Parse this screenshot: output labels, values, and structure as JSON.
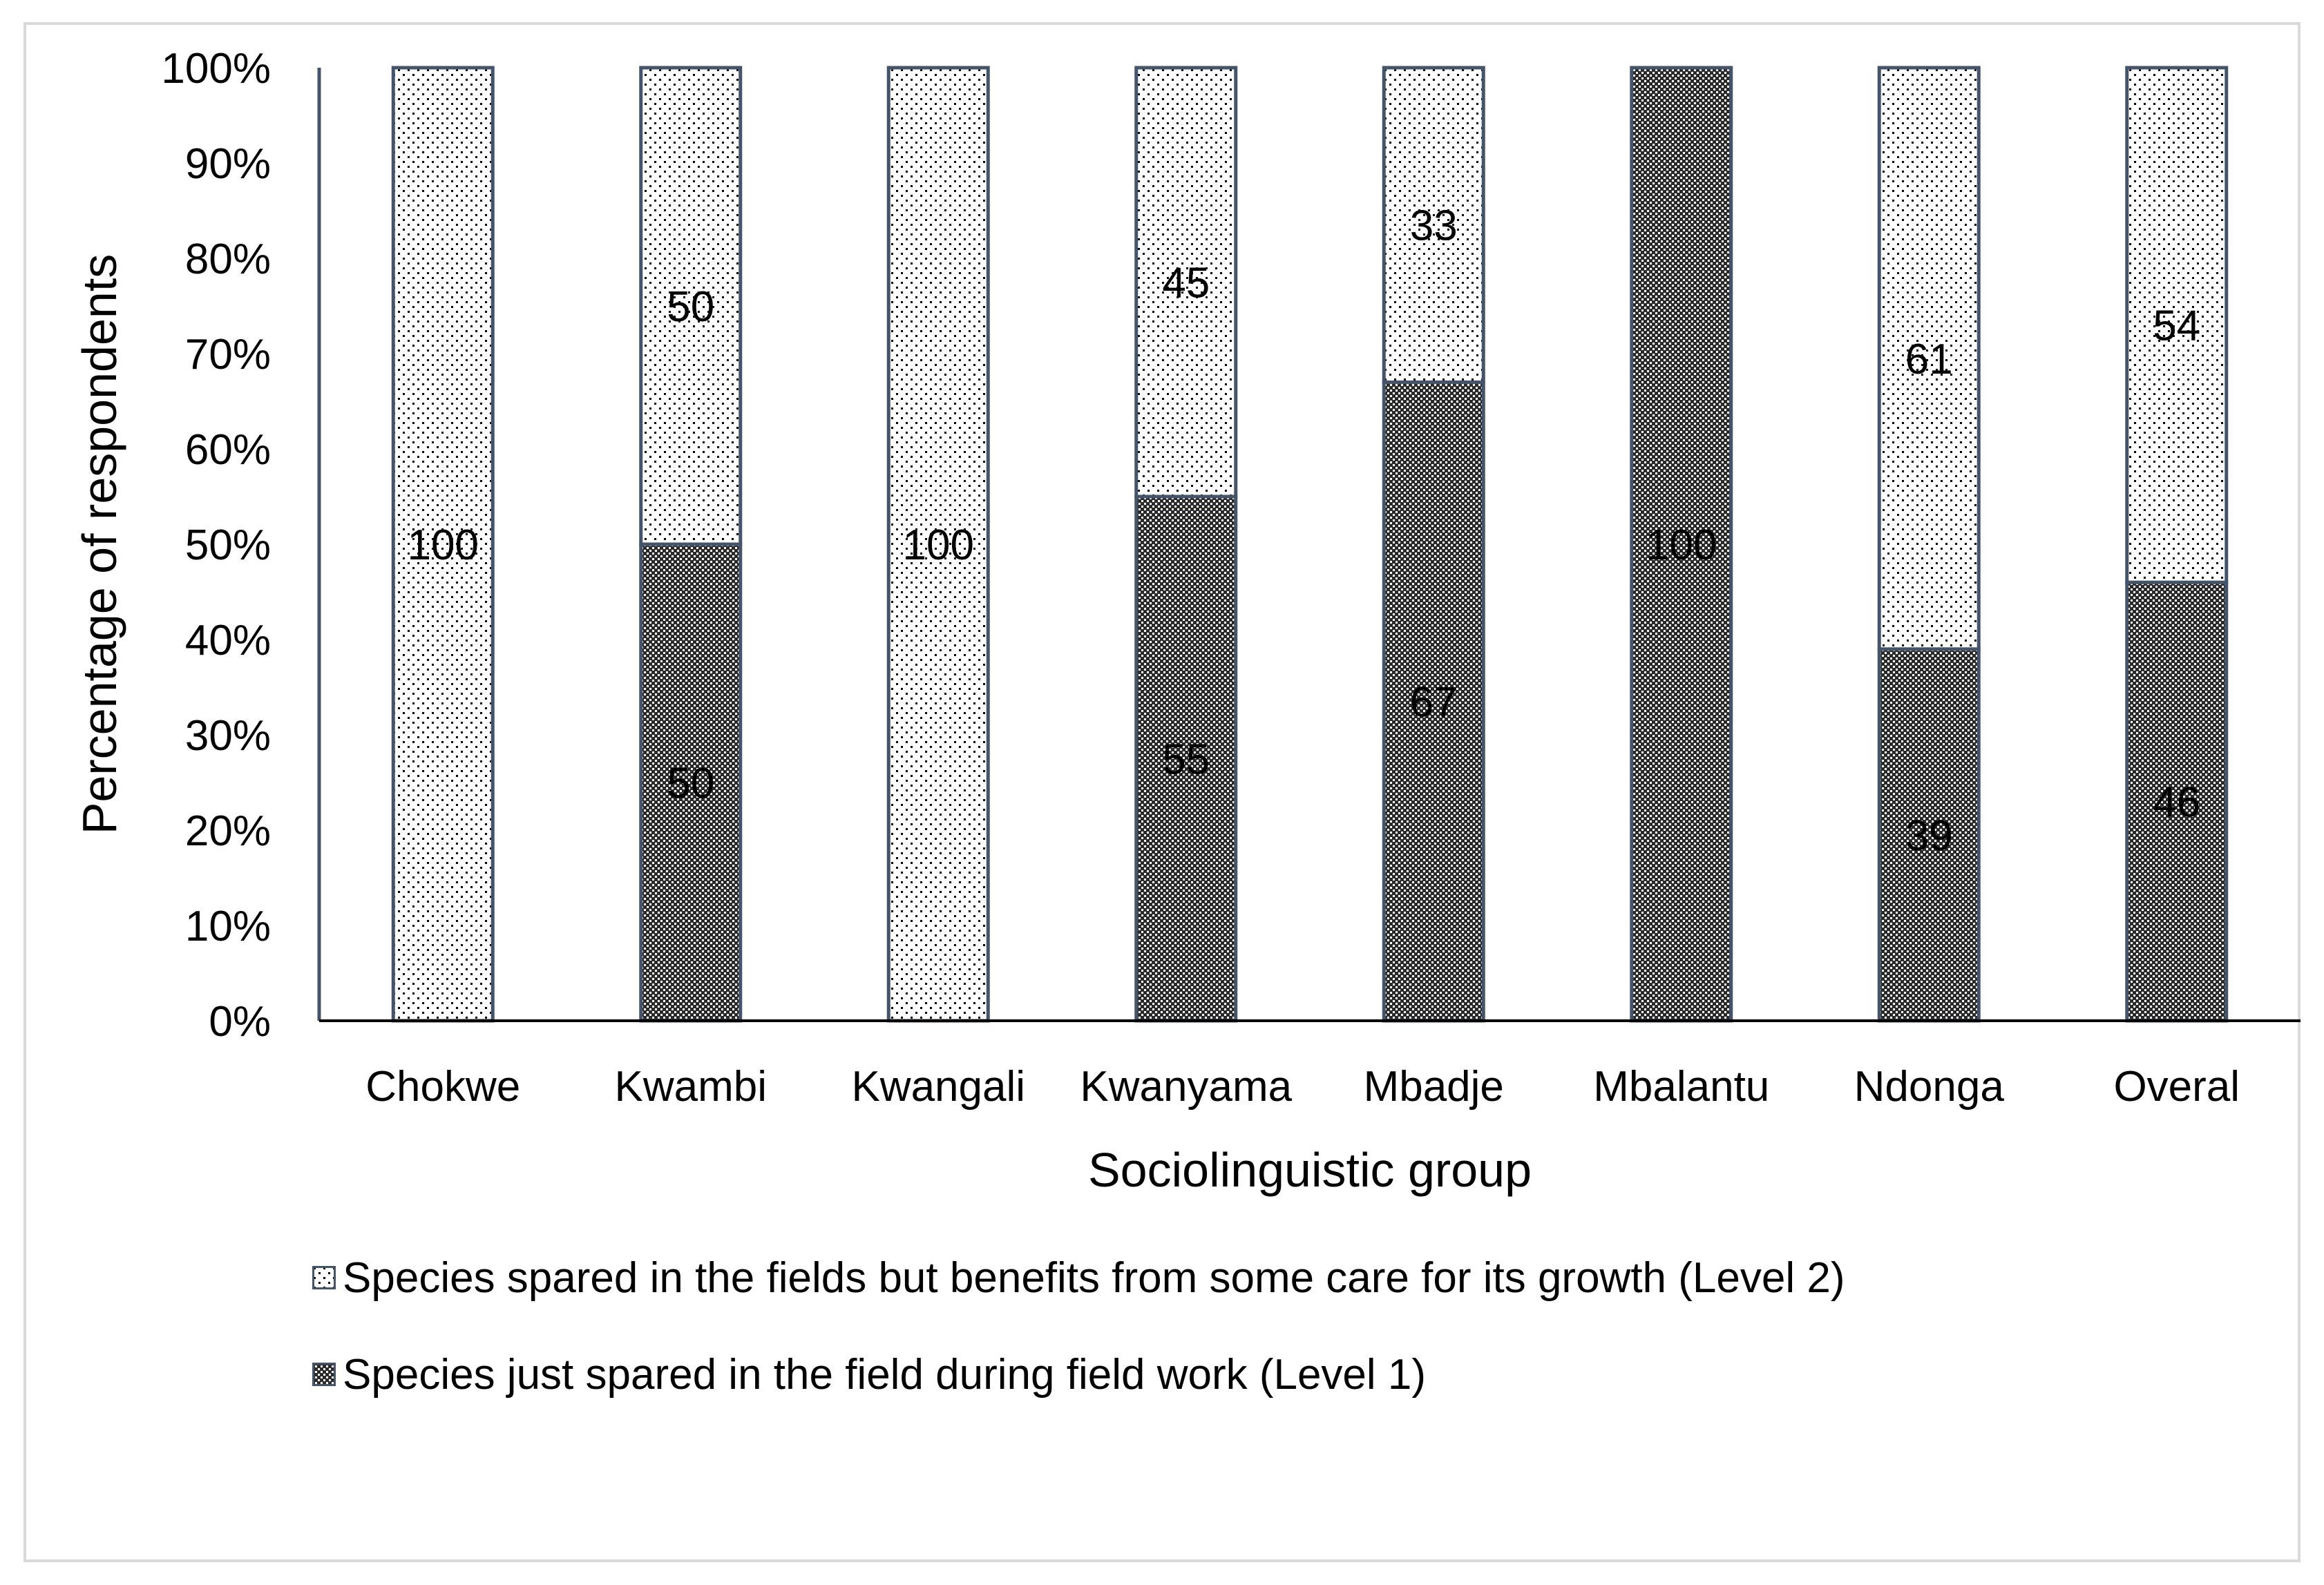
{
  "chart_data": {
    "type": "bar",
    "stacked": true,
    "percent": true,
    "title": "",
    "xlabel": "Sociolinguistic group",
    "ylabel": "Percentage of respondents",
    "ylim": [
      0,
      100
    ],
    "yticks": [
      "0%",
      "10%",
      "20%",
      "30%",
      "40%",
      "50%",
      "60%",
      "70%",
      "80%",
      "90%",
      "100%"
    ],
    "categories": [
      "Chokwe",
      "Kwambi",
      "Kwangali",
      "Kwanyama",
      "Mbadje",
      "Mbalantu",
      "Ndonga",
      "Overal"
    ],
    "series": [
      {
        "name": "Species just spared in the field during field work (Level 1)",
        "pattern": "dense",
        "values": [
          0,
          50,
          0,
          55,
          67,
          100,
          39,
          46
        ],
        "labels": [
          "",
          "50",
          "",
          "55",
          "67",
          "100",
          "39",
          "46"
        ]
      },
      {
        "name": "Species spared in the fields but benefits from some care for its growth (Level 2)",
        "pattern": "sparse",
        "values": [
          100,
          50,
          100,
          45,
          33,
          0,
          61,
          54
        ],
        "labels": [
          "100",
          "50",
          "100",
          "45",
          "33",
          "",
          "61",
          "54"
        ]
      }
    ],
    "legend_position": "bottom",
    "colors": {
      "bar_border": "#44546a",
      "axis": "#000000",
      "text": "#000000"
    }
  },
  "legend": {
    "items": [
      {
        "label": "Species spared in the fields but benefits from some care for its growth (Level 2)",
        "pattern": "sparse"
      },
      {
        "label": "Species just spared in the field during field work (Level 1)",
        "pattern": "dense"
      }
    ]
  }
}
